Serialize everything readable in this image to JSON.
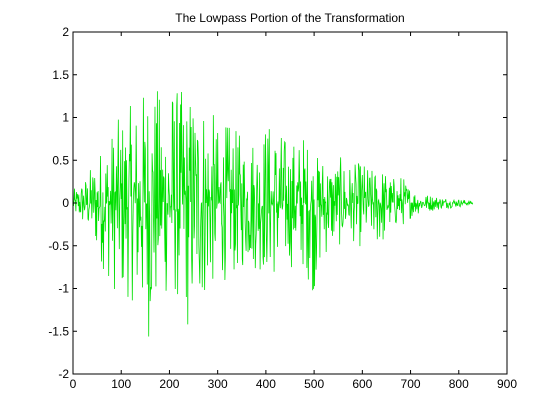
{
  "chart_data": {
    "type": "line",
    "title": "The Lowpass Portion of the Transformation",
    "xlabel": "",
    "ylabel": "",
    "xlim": [
      0,
      900
    ],
    "ylim": [
      -2,
      2
    ],
    "xticks": [
      "0",
      "100",
      "200",
      "300",
      "400",
      "500",
      "600",
      "700",
      "800",
      "900"
    ],
    "yticks": [
      "2",
      "1.5",
      "1",
      "0.5",
      "0",
      "-0.5",
      "-1",
      "-1.5",
      "-2"
    ],
    "grid": false,
    "legend": "none",
    "series": [
      {
        "color": "#00e000",
        "n_points": 830,
        "envelope": {
          "x": [
            0,
            30,
            60,
            90,
            100,
            120,
            140,
            160,
            180,
            200,
            220,
            240,
            260,
            280,
            300,
            320,
            340,
            360,
            380,
            400,
            420,
            440,
            460,
            480,
            500,
            520,
            540,
            560,
            580,
            600,
            620,
            640,
            660,
            680,
            700,
            720,
            740,
            760,
            780,
            800,
            820,
            830
          ],
          "max": [
            0.15,
            0.35,
            0.7,
            0.95,
            1.05,
            1.15,
            1.25,
            1.62,
            1.3,
            1.55,
            1.35,
            1.3,
            1.45,
            1.25,
            0.9,
            0.95,
            0.85,
            0.8,
            0.9,
            1.0,
            0.95,
            0.8,
            0.75,
            0.85,
            0.55,
            0.6,
            0.5,
            0.55,
            0.45,
            0.5,
            0.4,
            0.45,
            0.3,
            0.35,
            0.2,
            0.12,
            0.1,
            0.08,
            0.06,
            0.05,
            0.03,
            0.02
          ],
          "min": [
            -0.15,
            -0.35,
            -0.75,
            -1.1,
            -1.2,
            -1.1,
            -1.5,
            -1.62,
            -1.2,
            -1.1,
            -1.2,
            -1.58,
            -1.3,
            -1.1,
            -0.95,
            -0.9,
            -0.85,
            -0.75,
            -0.8,
            -0.85,
            -0.9,
            -0.8,
            -0.75,
            -0.8,
            -1.08,
            -0.65,
            -0.55,
            -0.5,
            -0.45,
            -0.55,
            -0.5,
            -0.55,
            -0.3,
            -0.3,
            -0.18,
            -0.12,
            -0.1,
            -0.08,
            -0.06,
            -0.05,
            -0.03,
            -0.02
          ]
        }
      }
    ]
  }
}
